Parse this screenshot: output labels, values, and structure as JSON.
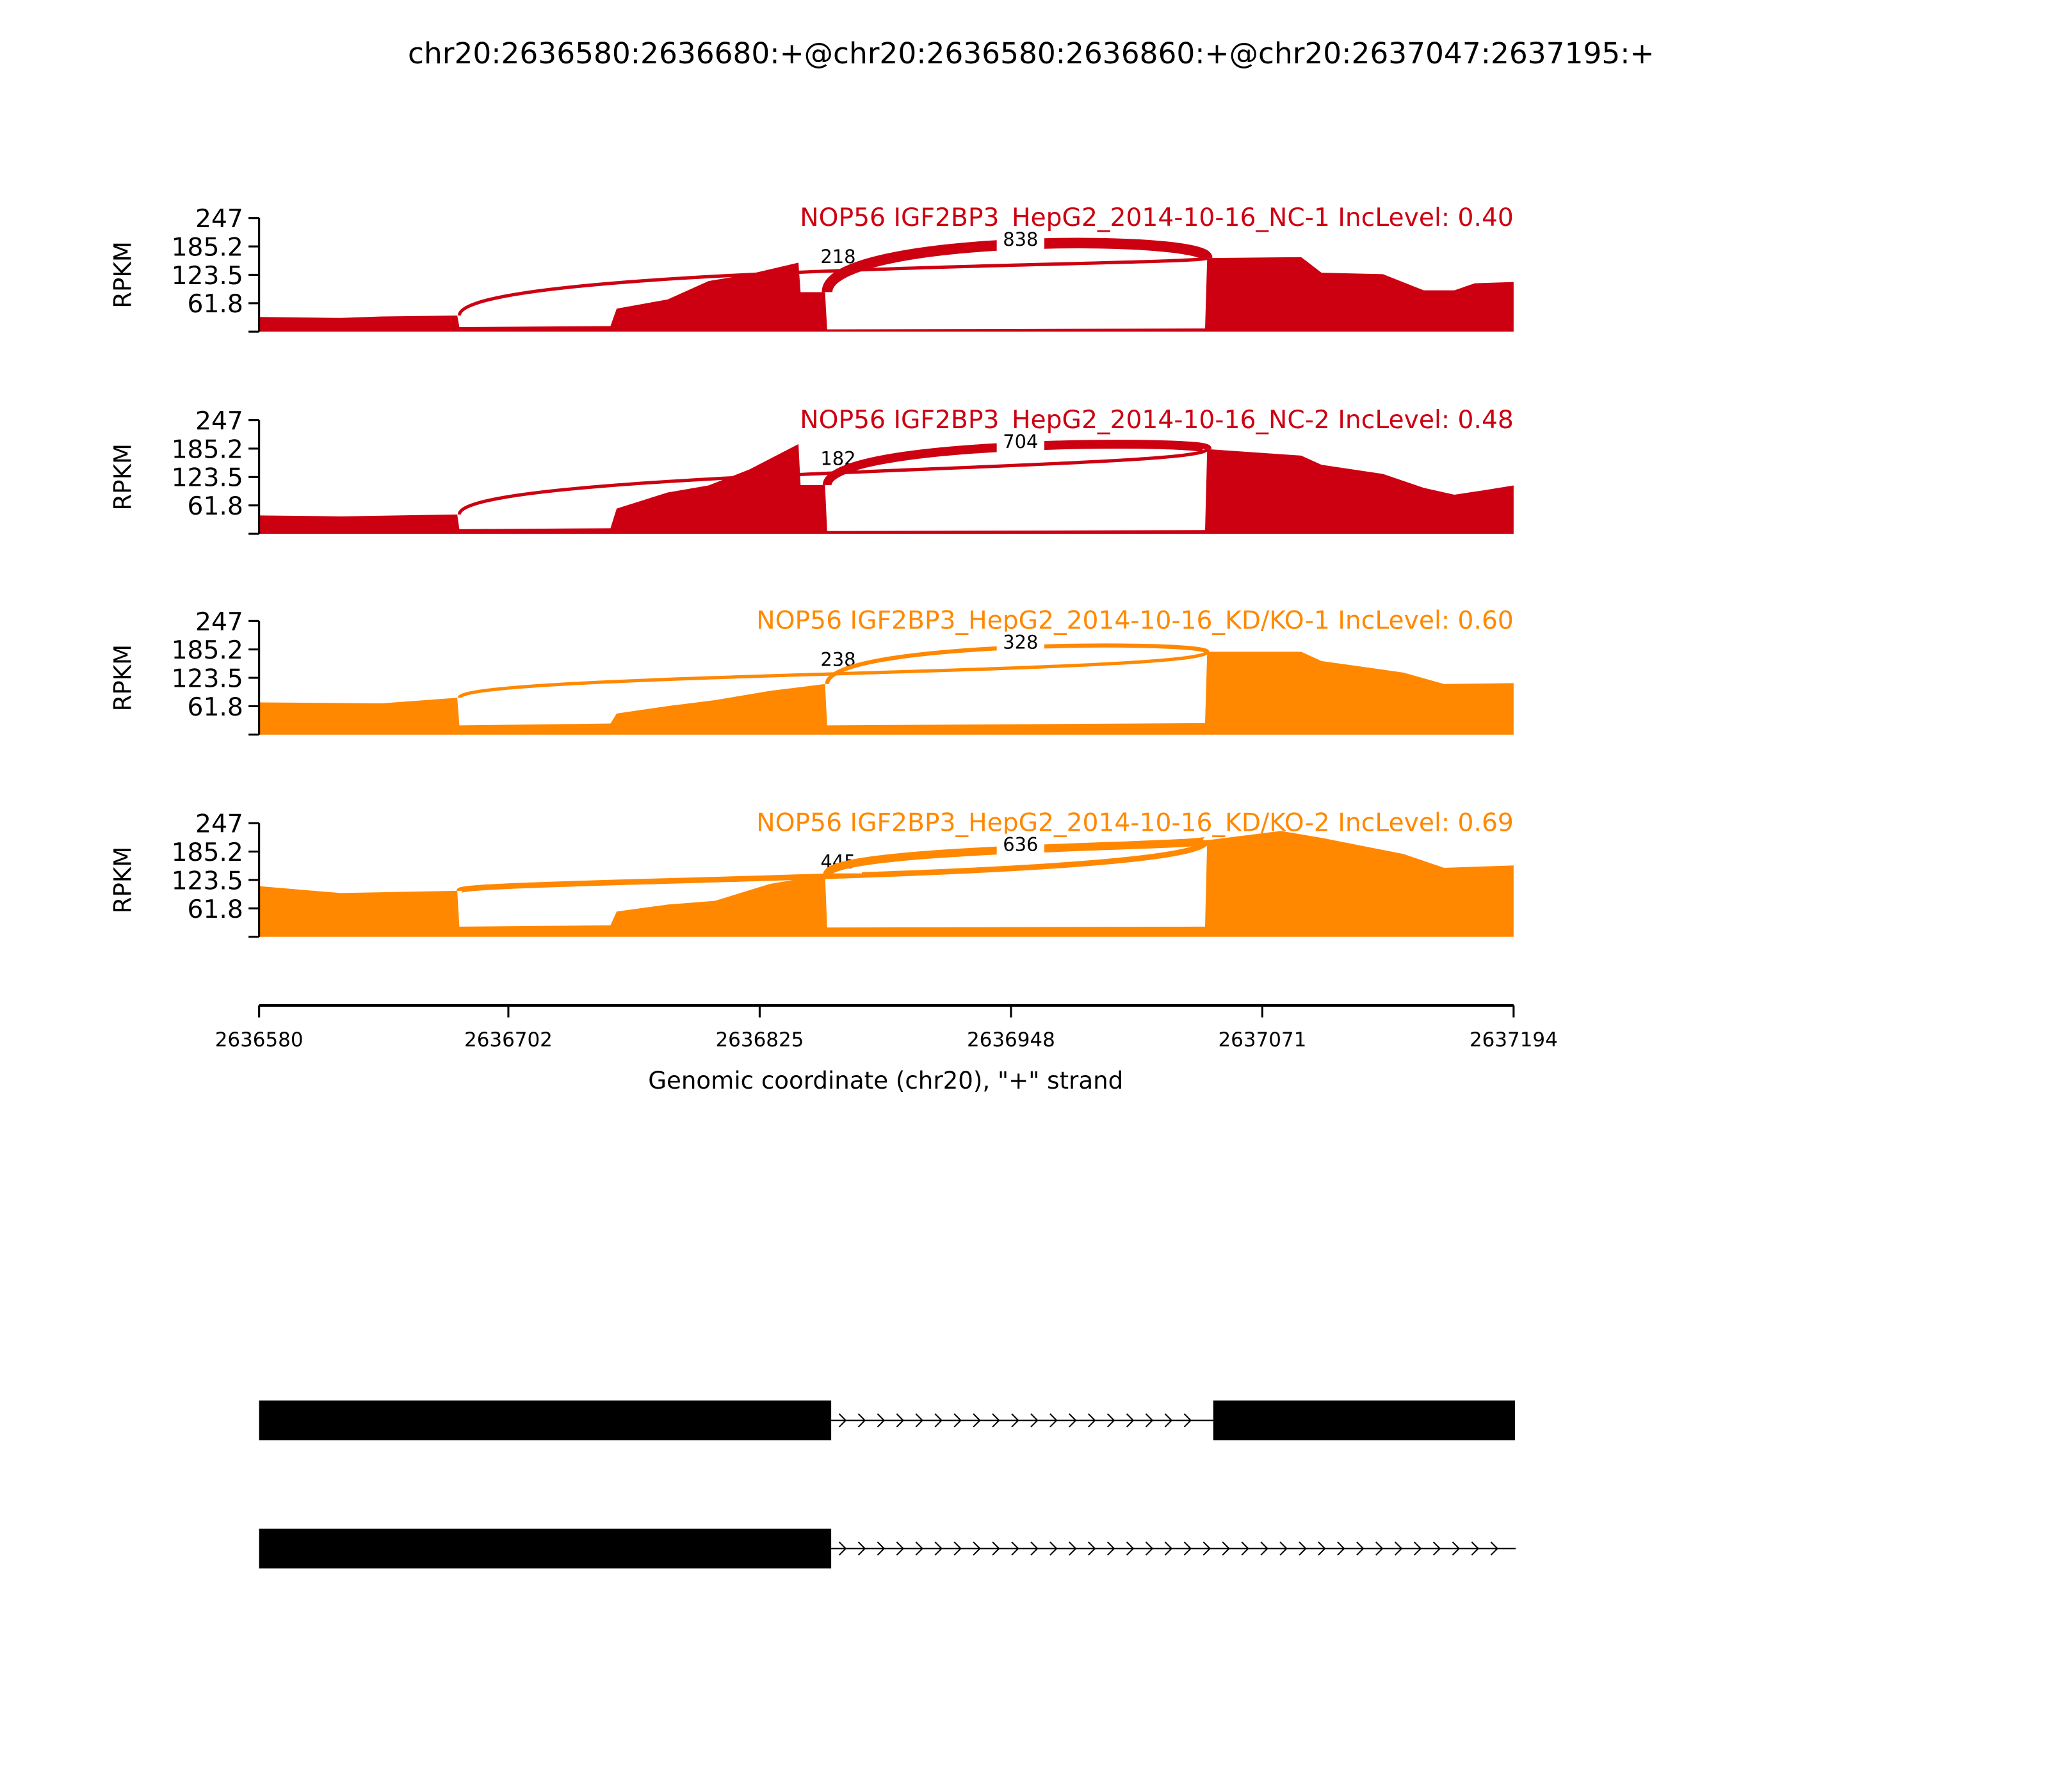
{
  "chart_data": {
    "type": "area",
    "title": "chr20:2636580:2636680:+@chr20:2636580:2636860:+@chr20:2637047:2637195:+",
    "xlabel": "Genomic coordinate (chr20), \"+\" strand",
    "ylabel": "RPKM",
    "xlim": [
      2636580,
      2637194
    ],
    "ylim": [
      0,
      247
    ],
    "x_ticks": [
      "2636580",
      "2636702",
      "2636825",
      "2636948",
      "2637071",
      "2637194"
    ],
    "y_ticks": [
      "61.8",
      "123.5",
      "185.2",
      "247"
    ],
    "panels": [
      {
        "label": "NOP56 IGF2BP3_HepG2_2014-10-16_NC-1 IncLevel: 0.40",
        "color": "#cc0011",
        "coverage": [
          [
            2636580,
            32
          ],
          [
            2636620,
            30
          ],
          [
            2636640,
            33
          ],
          [
            2636677,
            35
          ],
          [
            2636678,
            10
          ],
          [
            2636752,
            12
          ],
          [
            2636755,
            50
          ],
          [
            2636780,
            70
          ],
          [
            2636800,
            110
          ],
          [
            2636820,
            125
          ],
          [
            2636844,
            150
          ],
          [
            2636845,
            86
          ],
          [
            2636857,
            86
          ],
          [
            2636858,
            5
          ],
          [
            2637043,
            7
          ],
          [
            2637044,
            160
          ],
          [
            2637090,
            162
          ],
          [
            2637100,
            128
          ],
          [
            2637130,
            125
          ],
          [
            2637150,
            90
          ],
          [
            2637165,
            90
          ],
          [
            2637175,
            105
          ],
          [
            2637194,
            108
          ]
        ],
        "junctions": [
          {
            "start": 2636678,
            "end": 2637044,
            "count": "218"
          },
          {
            "start": 2636858,
            "end": 2637044,
            "count": "838"
          }
        ]
      },
      {
        "label": "NOP56 IGF2BP3_HepG2_2014-10-16_NC-2 IncLevel: 0.48",
        "color": "#cc0011",
        "coverage": [
          [
            2636580,
            40
          ],
          [
            2636620,
            38
          ],
          [
            2636677,
            42
          ],
          [
            2636678,
            10
          ],
          [
            2636752,
            12
          ],
          [
            2636755,
            55
          ],
          [
            2636780,
            90
          ],
          [
            2636800,
            105
          ],
          [
            2636820,
            140
          ],
          [
            2636844,
            195
          ],
          [
            2636845,
            106
          ],
          [
            2636857,
            106
          ],
          [
            2636858,
            6
          ],
          [
            2637043,
            8
          ],
          [
            2637044,
            184
          ],
          [
            2637090,
            170
          ],
          [
            2637100,
            150
          ],
          [
            2637130,
            130
          ],
          [
            2637150,
            100
          ],
          [
            2637165,
            85
          ],
          [
            2637180,
            95
          ],
          [
            2637194,
            105
          ]
        ],
        "junctions": [
          {
            "start": 2636678,
            "end": 2637044,
            "count": "182"
          },
          {
            "start": 2636858,
            "end": 2637044,
            "count": "704"
          }
        ]
      },
      {
        "label": "NOP56 IGF2BP3_HepG2_2014-10-16_KD/KO-1 IncLevel: 0.60",
        "color": "#ff8800",
        "coverage": [
          [
            2636580,
            70
          ],
          [
            2636640,
            68
          ],
          [
            2636677,
            80
          ],
          [
            2636678,
            20
          ],
          [
            2636752,
            24
          ],
          [
            2636755,
            46
          ],
          [
            2636780,
            62
          ],
          [
            2636803,
            75
          ],
          [
            2636830,
            95
          ],
          [
            2636857,
            110
          ],
          [
            2636858,
            20
          ],
          [
            2637043,
            25
          ],
          [
            2637044,
            180
          ],
          [
            2637090,
            180
          ],
          [
            2637100,
            160
          ],
          [
            2637140,
            135
          ],
          [
            2637160,
            110
          ],
          [
            2637194,
            112
          ]
        ],
        "junctions": [
          {
            "start": 2636678,
            "end": 2637044,
            "count": "238"
          },
          {
            "start": 2636858,
            "end": 2637044,
            "count": "328"
          }
        ]
      },
      {
        "label": "NOP56 IGF2BP3_HepG2_2014-10-16_KD/KO-2 IncLevel: 0.69",
        "color": "#ff8800",
        "coverage": [
          [
            2636580,
            110
          ],
          [
            2636620,
            95
          ],
          [
            2636677,
            100
          ],
          [
            2636678,
            22
          ],
          [
            2636752,
            25
          ],
          [
            2636755,
            55
          ],
          [
            2636780,
            70
          ],
          [
            2636803,
            78
          ],
          [
            2636830,
            115
          ],
          [
            2636857,
            135
          ],
          [
            2636858,
            20
          ],
          [
            2637043,
            22
          ],
          [
            2637044,
            210
          ],
          [
            2637080,
            230
          ],
          [
            2637100,
            215
          ],
          [
            2637140,
            180
          ],
          [
            2637160,
            150
          ],
          [
            2637194,
            155
          ]
        ],
        "junctions": [
          {
            "start": 2636678,
            "end": 2637044,
            "count": "445"
          },
          {
            "start": 2636858,
            "end": 2637044,
            "count": "636"
          }
        ]
      }
    ],
    "transcripts": [
      {
        "exons": [
          [
            2636580,
            2636860
          ],
          [
            2637047,
            2637195
          ]
        ],
        "strand": "+"
      },
      {
        "exons": [
          [
            2636580,
            2636860
          ]
        ],
        "strand": "+",
        "intron_end": 2637195
      }
    ]
  }
}
